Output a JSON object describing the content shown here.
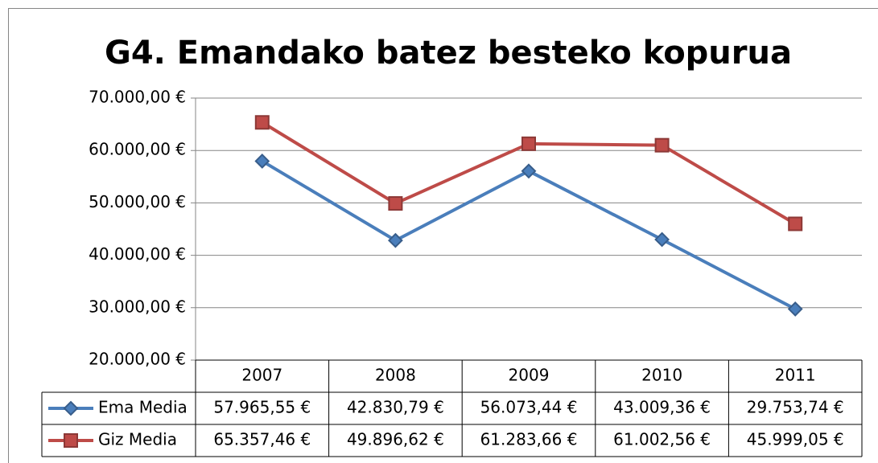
{
  "chart_data": {
    "type": "line",
    "title": "G4. Emandako batez besteko kopurua",
    "categories": [
      "2007",
      "2008",
      "2009",
      "2010",
      "2011"
    ],
    "series": [
      {
        "name": "Ema Media",
        "color": "#4a7ebb",
        "marker": "diamond",
        "values": [
          57965.55,
          42830.79,
          56073.44,
          43009.36,
          29753.74
        ],
        "value_labels": [
          "57.965,55 €",
          "42.830,79 €",
          "56.073,44 €",
          "43.009,36 €",
          "29.753,74 €"
        ]
      },
      {
        "name": "Giz Media",
        "color": "#be4b48",
        "marker": "square",
        "values": [
          65357.46,
          49896.62,
          61283.66,
          61002.56,
          45999.05
        ],
        "value_labels": [
          "65.357,46 €",
          "49.896,62 €",
          "61.283,66 €",
          "61.002,56 €",
          "45.999,05 €"
        ]
      }
    ],
    "ylim": [
      20000,
      70000
    ],
    "yticks": [
      {
        "value": 20000,
        "label": "20.000,00 €"
      },
      {
        "value": 30000,
        "label": "30.000,00 €"
      },
      {
        "value": 40000,
        "label": "40.000,00 €"
      },
      {
        "value": 50000,
        "label": "50.000,00 €"
      },
      {
        "value": 60000,
        "label": "60.000,00 €"
      },
      {
        "value": 70000,
        "label": "70.000,00 €"
      }
    ],
    "grid": true
  }
}
